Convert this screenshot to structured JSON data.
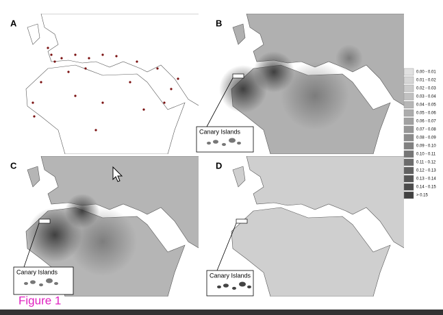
{
  "panels": [
    {
      "label": "A"
    },
    {
      "label": "B",
      "inset_label": "Canary Islands"
    },
    {
      "label": "C",
      "inset_label": "Canary Islands"
    },
    {
      "label": "D",
      "inset_label": "Canary Islands"
    }
  ],
  "legend": {
    "items": [
      "0.00 - 0.01",
      "0.01 - 0.02",
      "0.02 - 0.03",
      "0.03 - 0.04",
      "0.04 - 0.05",
      "0.05 - 0.06",
      "0.06 - 0.07",
      "0.07 - 0.08",
      "0.08 - 0.09",
      "0.09 - 0.10",
      "0.10 - 0.11",
      "0.11 - 0.12",
      "0.12 - 0.13",
      "0.13 - 0.14",
      "0.14 - 0.15",
      "> 0.15"
    ]
  },
  "caption": "Figure 1"
}
